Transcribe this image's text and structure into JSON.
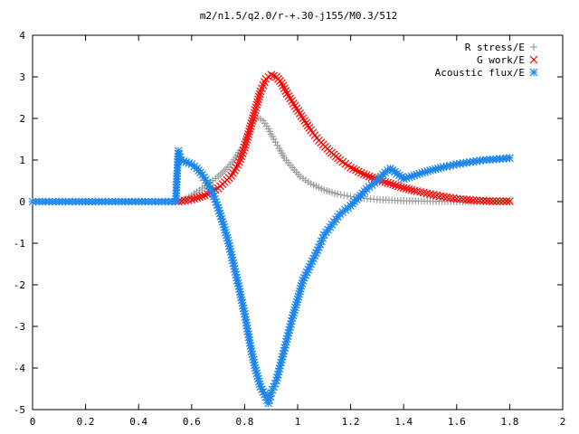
{
  "chart_data": {
    "type": "scatter",
    "title": "m2/n1.5/q2.0/r-+.30-j155/M0.3/512",
    "xlabel": "",
    "ylabel": "",
    "xlim": [
      0,
      2
    ],
    "ylim": [
      -5,
      4
    ],
    "xticks": [
      "0",
      "0.2",
      "0.4",
      "0.6",
      "0.8",
      "1",
      "1.2",
      "1.4",
      "1.6",
      "1.8",
      "2"
    ],
    "yticks": [
      "4",
      "3",
      "2",
      "1",
      "0",
      "-1",
      "-2",
      "-3",
      "-4",
      "-5"
    ],
    "grid": false,
    "legend_position": "top-right",
    "series": [
      {
        "name": "R stress/E",
        "marker": "plus",
        "color": "#a0a0a0",
        "points": [
          [
            0.55,
            0.0
          ],
          [
            0.57,
            0.05
          ],
          [
            0.6,
            0.15
          ],
          [
            0.63,
            0.28
          ],
          [
            0.66,
            0.42
          ],
          [
            0.7,
            0.6
          ],
          [
            0.73,
            0.78
          ],
          [
            0.76,
            1.0
          ],
          [
            0.79,
            1.3
          ],
          [
            0.81,
            1.6
          ],
          [
            0.83,
            1.9
          ],
          [
            0.85,
            2.02
          ],
          [
            0.87,
            1.95
          ],
          [
            0.89,
            1.75
          ],
          [
            0.91,
            1.5
          ],
          [
            0.93,
            1.28
          ],
          [
            0.95,
            1.05
          ],
          [
            0.98,
            0.82
          ],
          [
            1.01,
            0.6
          ],
          [
            1.05,
            0.43
          ],
          [
            1.1,
            0.28
          ],
          [
            1.15,
            0.18
          ],
          [
            1.2,
            0.12
          ],
          [
            1.25,
            0.08
          ],
          [
            1.3,
            0.05
          ],
          [
            1.4,
            0.02
          ],
          [
            1.5,
            0.01
          ],
          [
            1.6,
            0.0
          ],
          [
            1.7,
            0.0
          ],
          [
            1.8,
            0.0
          ]
        ]
      },
      {
        "name": "G work/E",
        "marker": "cross",
        "color": "#ff0000",
        "points": [
          [
            0.55,
            0.0
          ],
          [
            0.6,
            0.05
          ],
          [
            0.65,
            0.15
          ],
          [
            0.7,
            0.32
          ],
          [
            0.75,
            0.62
          ],
          [
            0.78,
            0.95
          ],
          [
            0.8,
            1.3
          ],
          [
            0.82,
            1.75
          ],
          [
            0.84,
            2.2
          ],
          [
            0.86,
            2.65
          ],
          [
            0.88,
            2.95
          ],
          [
            0.9,
            3.05
          ],
          [
            0.92,
            3.0
          ],
          [
            0.94,
            2.85
          ],
          [
            0.96,
            2.6
          ],
          [
            0.99,
            2.3
          ],
          [
            1.02,
            2.0
          ],
          [
            1.05,
            1.72
          ],
          [
            1.08,
            1.47
          ],
          [
            1.12,
            1.22
          ],
          [
            1.16,
            1.0
          ],
          [
            1.2,
            0.82
          ],
          [
            1.25,
            0.66
          ],
          [
            1.3,
            0.53
          ],
          [
            1.35,
            0.43
          ],
          [
            1.4,
            0.33
          ],
          [
            1.45,
            0.25
          ],
          [
            1.5,
            0.18
          ],
          [
            1.55,
            0.12
          ],
          [
            1.6,
            0.07
          ],
          [
            1.65,
            0.04
          ],
          [
            1.7,
            0.02
          ],
          [
            1.75,
            0.01
          ],
          [
            1.8,
            0.01
          ]
        ]
      },
      {
        "name": "Acoustic flux/E",
        "marker": "star",
        "color": "#1c86ee",
        "points": [
          [
            0.0,
            0.0
          ],
          [
            0.05,
            0.0
          ],
          [
            0.1,
            0.0
          ],
          [
            0.15,
            0.0
          ],
          [
            0.2,
            0.0
          ],
          [
            0.25,
            0.0
          ],
          [
            0.3,
            0.0
          ],
          [
            0.35,
            0.0
          ],
          [
            0.4,
            0.0
          ],
          [
            0.45,
            0.0
          ],
          [
            0.5,
            0.0
          ],
          [
            0.54,
            0.0
          ],
          [
            0.55,
            1.22
          ],
          [
            0.56,
            1.0
          ],
          [
            0.58,
            0.95
          ],
          [
            0.6,
            0.9
          ],
          [
            0.62,
            0.8
          ],
          [
            0.64,
            0.65
          ],
          [
            0.66,
            0.45
          ],
          [
            0.68,
            0.2
          ],
          [
            0.7,
            -0.15
          ],
          [
            0.72,
            -0.55
          ],
          [
            0.74,
            -1.0
          ],
          [
            0.76,
            -1.55
          ],
          [
            0.78,
            -2.1
          ],
          [
            0.8,
            -2.7
          ],
          [
            0.82,
            -3.4
          ],
          [
            0.84,
            -4.0
          ],
          [
            0.86,
            -4.45
          ],
          [
            0.88,
            -4.7
          ],
          [
            0.89,
            -4.85
          ],
          [
            0.9,
            -4.6
          ],
          [
            0.92,
            -4.3
          ],
          [
            0.94,
            -3.8
          ],
          [
            0.96,
            -3.3
          ],
          [
            0.98,
            -2.8
          ],
          [
            1.0,
            -2.35
          ],
          [
            1.02,
            -1.9
          ],
          [
            1.05,
            -1.5
          ],
          [
            1.08,
            -1.1
          ],
          [
            1.1,
            -0.8
          ],
          [
            1.13,
            -0.55
          ],
          [
            1.16,
            -0.3
          ],
          [
            1.2,
            -0.1
          ],
          [
            1.23,
            0.1
          ],
          [
            1.26,
            0.3
          ],
          [
            1.3,
            0.5
          ],
          [
            1.33,
            0.7
          ],
          [
            1.35,
            0.8
          ],
          [
            1.4,
            0.55
          ],
          [
            1.45,
            0.65
          ],
          [
            1.5,
            0.75
          ],
          [
            1.55,
            0.83
          ],
          [
            1.6,
            0.9
          ],
          [
            1.65,
            0.95
          ],
          [
            1.7,
            1.0
          ],
          [
            1.75,
            1.02
          ],
          [
            1.8,
            1.05
          ]
        ]
      }
    ]
  }
}
